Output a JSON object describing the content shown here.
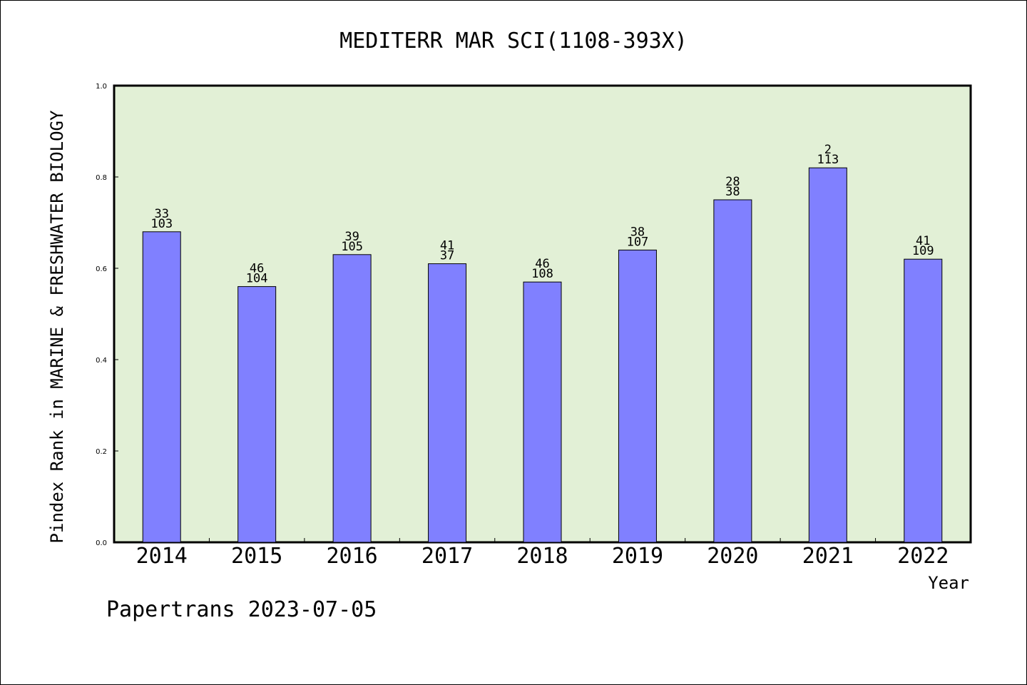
{
  "chart_data": {
    "type": "bar",
    "title": "MEDITERR MAR SCI(1108-393X)",
    "xlabel": "Year",
    "ylabel": "Pindex Rank in MARINE & FRESHWATER BIOLOGY",
    "categories": [
      "2014",
      "2015",
      "2016",
      "2017",
      "2018",
      "2019",
      "2020",
      "2021",
      "2022"
    ],
    "values": [
      0.68,
      0.56,
      0.63,
      0.61,
      0.57,
      0.64,
      0.75,
      0.82,
      0.62
    ],
    "label_top": [
      "33",
      "46",
      "39",
      "41",
      "46",
      "38",
      "28",
      "2",
      "41"
    ],
    "label_bottom": [
      "103",
      "104",
      "105",
      "37",
      "108",
      "107",
      "38",
      "113",
      "109"
    ],
    "ylim": [
      0,
      1.0
    ],
    "yticks": [
      "0.0",
      "0.2",
      "0.4",
      "0.6",
      "0.8",
      "1.0"
    ],
    "colors": {
      "plot_bg": "#e2f0d6",
      "bar": "#8080ff",
      "bar_edge": "#000000"
    },
    "grid": false
  },
  "footer": "Papertrans 2023-07-05"
}
